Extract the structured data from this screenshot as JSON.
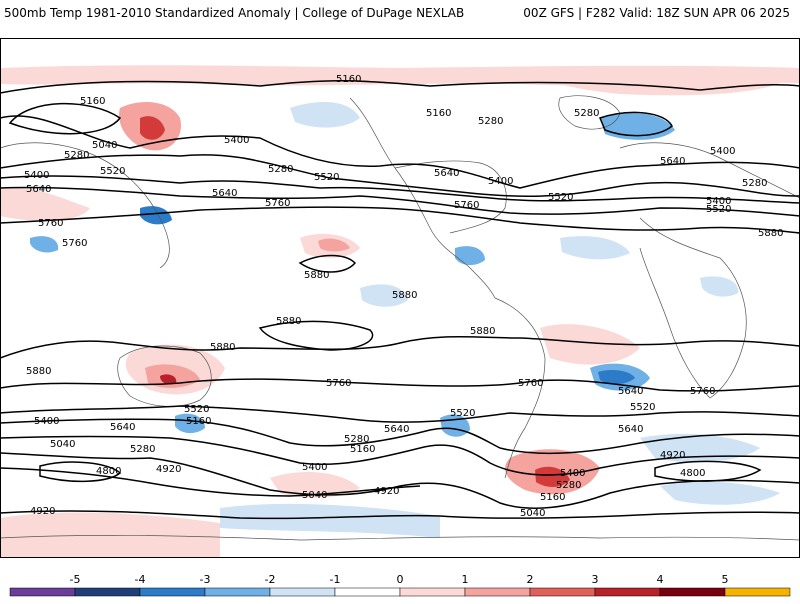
{
  "header": {
    "left_title": "500mb Temp 1981-2010 Standardized Anomaly | College of DuPage NEXLAB",
    "right_title": "00Z GFS | F282 Valid: 18Z SUN APR 06 2025"
  },
  "contour_labels": [
    "5160",
    "5160",
    "5280",
    "5040",
    "5400",
    "5280",
    "5520",
    "5400",
    "5640",
    "5760",
    "5160",
    "5280",
    "5280",
    "5520",
    "5400",
    "5640",
    "5640",
    "5400",
    "5760",
    "5520",
    "5280",
    "5640",
    "5760",
    "5400",
    "5520",
    "5880",
    "5880",
    "5880",
    "5880",
    "5880",
    "5880",
    "5880",
    "5760",
    "5760",
    "5760",
    "5640",
    "5640",
    "5400",
    "5520",
    "5160",
    "5040",
    "5280",
    "4800",
    "4920",
    "4920",
    "5400",
    "5280",
    "5160",
    "5640",
    "5520",
    "5040",
    "4920",
    "5400",
    "5280",
    "5160",
    "5040",
    "4920",
    "4800",
    "5640",
    "5520",
    "5760"
  ],
  "colorbar": {
    "ticks": [
      "-5",
      "-4",
      "-3",
      "-2",
      "-1",
      "0",
      "1",
      "2",
      "3",
      "4",
      "5"
    ],
    "colors": [
      "#6a3d9a",
      "#1f3f7a",
      "#2c7bc8",
      "#6fb1e6",
      "#cfe3f5",
      "#ffffff",
      "#fbd9d7",
      "#f4a39e",
      "#e0605a",
      "#b8202a",
      "#7a0010",
      "#f3b300"
    ]
  },
  "colors": {
    "contour": "#000000",
    "coast": "#555555",
    "warm_light": "#fbd9d7",
    "warm_mid": "#f4a39e",
    "warm_strong": "#d33a3a",
    "cold_light": "#cfe3f5",
    "cold_mid": "#6fb1e6",
    "cold_strong": "#2c7bc8"
  }
}
